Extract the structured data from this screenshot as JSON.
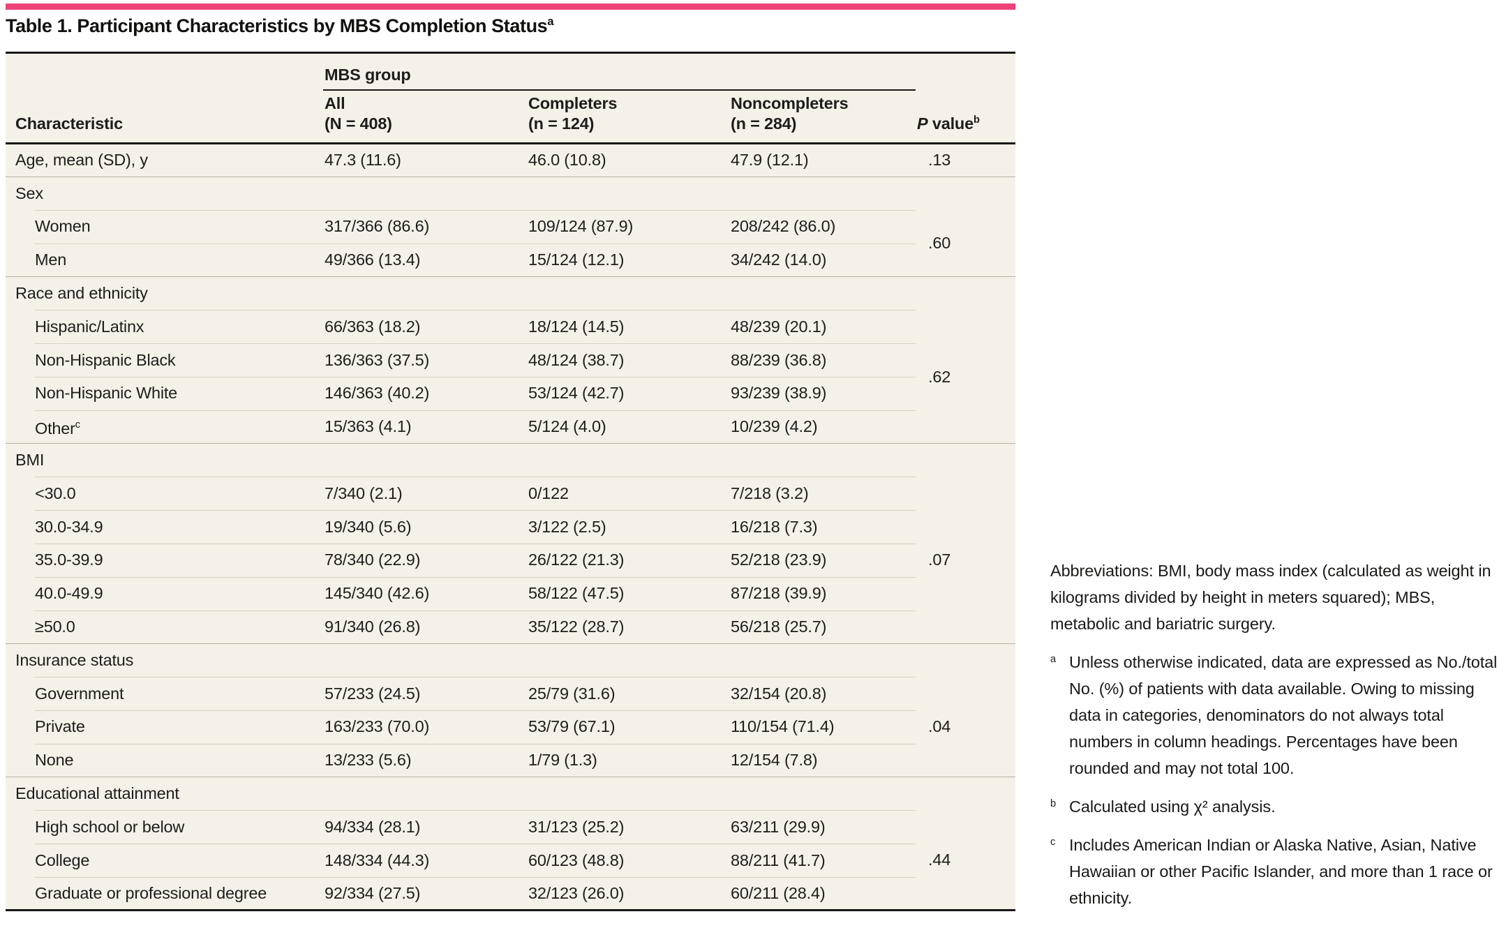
{
  "accent_color": "#ed4378",
  "title": "Table 1. Participant Characteristics by MBS Completion Status",
  "title_superscript": "a",
  "table": {
    "group_header": "MBS group",
    "columns": [
      {
        "label": "Characteristic"
      },
      {
        "label": "All",
        "sublabel": "(N = 408)"
      },
      {
        "label": "Completers",
        "sublabel": "(n = 124)"
      },
      {
        "label": "Noncompleters",
        "sublabel": "(n = 284)"
      },
      {
        "label_italic": "P",
        "label_rest": " value",
        "superscript": "b"
      }
    ],
    "sections": [
      {
        "p_value": ".13",
        "rows": [
          {
            "label": "Age, mean (SD), y",
            "values": [
              "47.3 (11.6)",
              "46.0 (10.8)",
              "47.9 (12.1)"
            ]
          }
        ]
      },
      {
        "header": "Sex",
        "p_value": ".60",
        "rows": [
          {
            "label": "Women",
            "values": [
              "317/366 (86.6)",
              "109/124 (87.9)",
              "208/242 (86.0)"
            ]
          },
          {
            "label": "Men",
            "values": [
              "49/366 (13.4)",
              "15/124 (12.1)",
              "34/242 (14.0)"
            ]
          }
        ]
      },
      {
        "header": "Race and ethnicity",
        "p_value": ".62",
        "rows": [
          {
            "label": "Hispanic/Latinx",
            "values": [
              "66/363 (18.2)",
              "18/124 (14.5)",
              "48/239 (20.1)"
            ]
          },
          {
            "label": "Non-Hispanic Black",
            "values": [
              "136/363 (37.5)",
              "48/124 (38.7)",
              "88/239 (36.8)"
            ]
          },
          {
            "label": "Non-Hispanic White",
            "values": [
              "146/363 (40.2)",
              "53/124 (42.7)",
              "93/239 (38.9)"
            ]
          },
          {
            "label": "Other",
            "superscript": "c",
            "values": [
              "15/363 (4.1)",
              "5/124 (4.0)",
              "10/239 (4.2)"
            ]
          }
        ]
      },
      {
        "header": "BMI",
        "p_value": ".07",
        "rows": [
          {
            "label": "<30.0",
            "values": [
              "7/340 (2.1)",
              "0/122",
              "7/218 (3.2)"
            ]
          },
          {
            "label": "30.0-34.9",
            "values": [
              "19/340 (5.6)",
              "3/122 (2.5)",
              "16/218 (7.3)"
            ]
          },
          {
            "label": "35.0-39.9",
            "values": [
              "78/340 (22.9)",
              "26/122 (21.3)",
              "52/218 (23.9)"
            ]
          },
          {
            "label": "40.0-49.9",
            "values": [
              "145/340 (42.6)",
              "58/122 (47.5)",
              "87/218 (39.9)"
            ]
          },
          {
            "label": "≥50.0",
            "values": [
              "91/340 (26.8)",
              "35/122 (28.7)",
              "56/218 (25.7)"
            ]
          }
        ]
      },
      {
        "header": "Insurance status",
        "p_value": ".04",
        "rows": [
          {
            "label": "Government",
            "values": [
              "57/233 (24.5)",
              "25/79 (31.6)",
              "32/154 (20.8)"
            ]
          },
          {
            "label": "Private",
            "values": [
              "163/233 (70.0)",
              "53/79 (67.1)",
              "110/154 (71.4)"
            ]
          },
          {
            "label": "None",
            "values": [
              "13/233 (5.6)",
              "1/79 (1.3)",
              "12/154 (7.8)"
            ]
          }
        ]
      },
      {
        "header": "Educational attainment",
        "p_value": ".44",
        "rows": [
          {
            "label": "High school or below",
            "values": [
              "94/334 (28.1)",
              "31/123 (25.2)",
              "63/211 (29.9)"
            ]
          },
          {
            "label": "College",
            "values": [
              "148/334 (44.3)",
              "60/123 (48.8)",
              "88/211 (41.7)"
            ]
          },
          {
            "label": "Graduate or professional degree",
            "values": [
              "92/334 (27.5)",
              "32/123 (26.0)",
              "60/211 (28.4)"
            ]
          }
        ]
      }
    ]
  },
  "footnotes": {
    "abbreviations": "Abbreviations: BMI, body mass index (calculated as weight in kilograms divided by height in meters squared); MBS, metabolic and bariatric surgery.",
    "items": [
      {
        "marker": "a",
        "text": "Unless otherwise indicated, data are expressed as No./total No. (%) of patients with data available. Owing to missing data in categories, denominators do not always total numbers in column headings. Percentages have been rounded and may not total 100."
      },
      {
        "marker": "b",
        "text": "Calculated using χ² analysis."
      },
      {
        "marker": "c",
        "text": "Includes American Indian or Alaska Native, Asian, Native Hawaiian or other Pacific Islander, and more than 1 race or ethnicity."
      }
    ]
  }
}
